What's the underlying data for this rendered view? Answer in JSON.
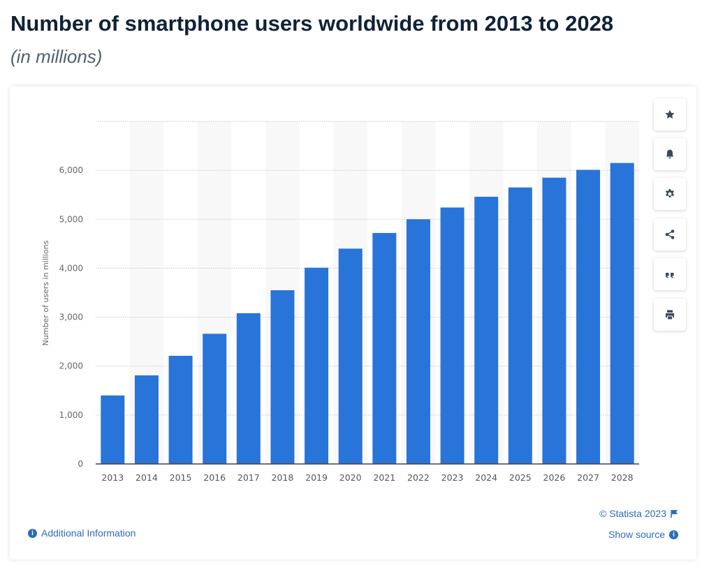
{
  "header": {
    "title": "Number of smartphone users worldwide from 2013 to 2028",
    "subtitle": "(in millions)"
  },
  "toolbar": {
    "buttons": [
      {
        "name": "favorite",
        "icon": "star-icon"
      },
      {
        "name": "notify",
        "icon": "bell-icon"
      },
      {
        "name": "settings",
        "icon": "gear-icon"
      },
      {
        "name": "share",
        "icon": "share-icon"
      },
      {
        "name": "cite",
        "icon": "quote-icon"
      },
      {
        "name": "print",
        "icon": "printer-icon"
      }
    ]
  },
  "footer": {
    "copyright": "© Statista 2023",
    "show_source": "Show source",
    "additional_info": "Additional Information"
  },
  "colors": {
    "bar": "#2874d9",
    "link": "#2a6db5",
    "band": "#f8f8f8"
  },
  "chart_data": {
    "type": "bar",
    "title": "Number of smartphone users worldwide from 2013 to 2028",
    "subtitle": "(in millions)",
    "xlabel": "",
    "ylabel": "Number of users in millions",
    "ylim": [
      0,
      7000
    ],
    "yticks": [
      0,
      1000,
      2000,
      3000,
      4000,
      5000,
      6000
    ],
    "ytick_labels": [
      "0",
      "1,000",
      "2,000",
      "3,000",
      "4,000",
      "5,000",
      "6,000"
    ],
    "grid": true,
    "categories": [
      "2013",
      "2014",
      "2015",
      "2016",
      "2017",
      "2018",
      "2019",
      "2020",
      "2021",
      "2022",
      "2023",
      "2024",
      "2025",
      "2026",
      "2027",
      "2028"
    ],
    "values": [
      1400,
      1810,
      2210,
      2660,
      3080,
      3550,
      4010,
      4400,
      4720,
      5000,
      5240,
      5460,
      5650,
      5850,
      6010,
      6150
    ]
  }
}
